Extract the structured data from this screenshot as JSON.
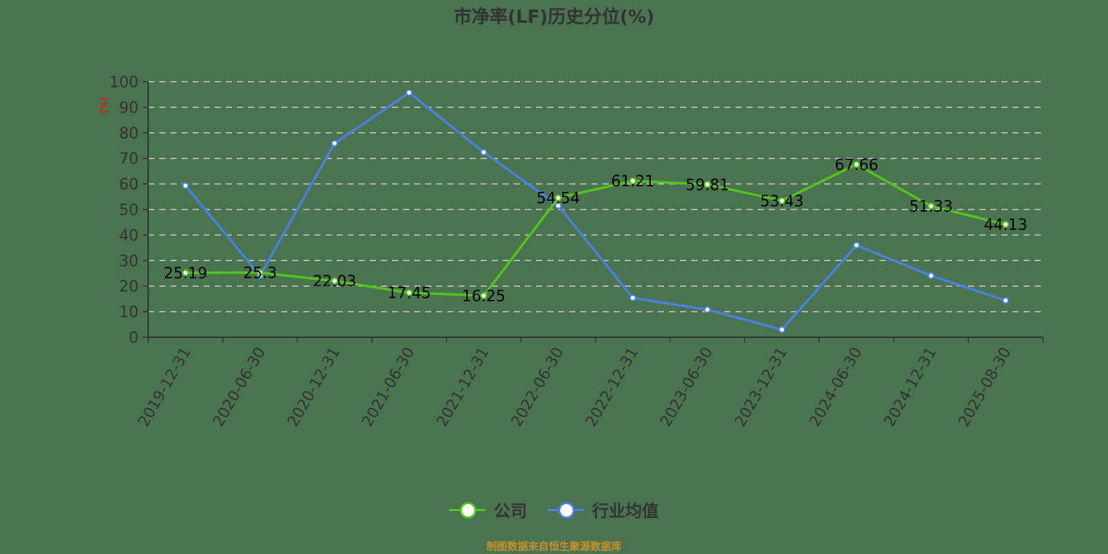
{
  "title": "市净率(LF)历史分位(%)",
  "source_note": "制图数据来自恒生聚源数据库",
  "legend": {
    "company_label": "公司",
    "industry_label": "行业均值"
  },
  "colors": {
    "background": "#4a7350",
    "company": "#52c41a",
    "industry": "#4a80e0",
    "axis": "#333333",
    "grid": "#d0d0d0",
    "ylabel": "#ff0000",
    "source": "#c8902a"
  },
  "chart_data": {
    "type": "line",
    "title": "市净率(LF)历史分位(%)",
    "xlabel": "",
    "ylabel": "(%)",
    "ylim": [
      0,
      100
    ],
    "yticks": [
      0,
      10,
      20,
      30,
      40,
      50,
      60,
      70,
      80,
      90,
      100
    ],
    "grid": true,
    "legend_position": "bottom",
    "categories": [
      "2019-12-31",
      "2020-06-30",
      "2020-12-31",
      "2021-06-30",
      "2021-12-31",
      "2022-06-30",
      "2022-12-31",
      "2023-06-30",
      "2023-12-31",
      "2024-06-30",
      "2024-12-31",
      "2025-08-30"
    ],
    "series": [
      {
        "name": "公司",
        "color": "#52c41a",
        "values": [
          25.19,
          25.3,
          22.03,
          17.45,
          16.25,
          54.54,
          61.21,
          59.81,
          53.43,
          67.66,
          51.33,
          44.13
        ],
        "labels_shown": true
      },
      {
        "name": "行业均值",
        "color": "#4a80e0",
        "values": [
          59.3,
          24.1,
          75.9,
          95.7,
          72.4,
          51.5,
          15.4,
          10.8,
          3.0,
          36.0,
          24.1,
          14.4
        ],
        "labels_shown": false
      }
    ]
  }
}
